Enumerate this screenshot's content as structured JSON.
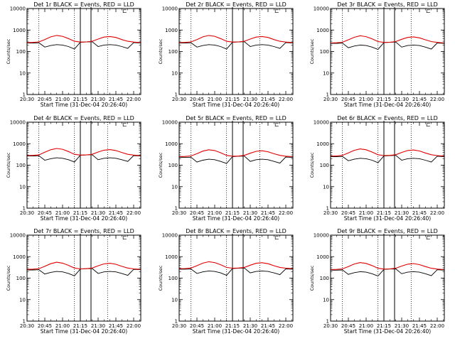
{
  "chart_data": [
    {
      "type": "line",
      "title": "Det 1r BLACK = Events, RED = LLD",
      "corner_mark": "⊏",
      "xlabel": "Start Time (31-Dec-04 20:26:40)",
      "ylabel": "Counts/sec",
      "x_ticks": [
        "20:30",
        "20:45",
        "21:00",
        "21:15",
        "21:30",
        "21:45",
        "22:00"
      ],
      "y_ticks": [
        "1",
        "10",
        "100",
        "1000",
        "10000"
      ],
      "yscale": "log",
      "ylim": [
        1,
        10000
      ],
      "xlim_minutes_from_2030": [
        0,
        96
      ],
      "x_minutes_from_2030": [
        0,
        5,
        10,
        15,
        20,
        25,
        30,
        35,
        40,
        45,
        50,
        55,
        60,
        65,
        70,
        75,
        80,
        85,
        90,
        96
      ],
      "series": [
        {
          "name": "Events",
          "color": "#000000",
          "values": [
            250,
            250,
            255,
            160,
            190,
            210,
            200,
            170,
            130,
            270,
            280,
            285,
            170,
            200,
            210,
            200,
            170,
            140,
            260,
            250
          ]
        },
        {
          "name": "LLD",
          "color": "#e00000",
          "values": [
            260,
            265,
            280,
            360,
            480,
            560,
            510,
            400,
            300,
            275,
            280,
            300,
            380,
            470,
            500,
            450,
            360,
            300,
            275,
            260
          ]
        }
      ],
      "vertical_lines": {
        "solid_minutes": [
          45,
          54
        ],
        "dotted_minutes": [
          10,
          40,
          68
        ]
      }
    },
    {
      "type": "line",
      "title": "Det 2r BLACK = Events, RED = LLD",
      "corner_mark": "⊏",
      "xlabel": "Start Time (31-Dec-04 20:26:40)",
      "ylabel": "Counts/sec",
      "x_ticks": [
        "20:30",
        "20:45",
        "21:00",
        "21:15",
        "21:30",
        "21:45",
        "22:00"
      ],
      "y_ticks": [
        "1",
        "10",
        "100",
        "1000",
        "10000"
      ],
      "yscale": "log",
      "ylim": [
        1,
        10000
      ],
      "xlim_minutes_from_2030": [
        0,
        96
      ],
      "x_minutes_from_2030": [
        0,
        5,
        10,
        15,
        20,
        25,
        30,
        35,
        40,
        45,
        50,
        55,
        60,
        65,
        70,
        75,
        80,
        85,
        90,
        96
      ],
      "series": [
        {
          "name": "Events",
          "color": "#000000",
          "values": [
            250,
            250,
            255,
            160,
            190,
            210,
            200,
            170,
            130,
            270,
            280,
            285,
            170,
            200,
            210,
            200,
            170,
            140,
            260,
            250
          ]
        },
        {
          "name": "LLD",
          "color": "#e00000",
          "values": [
            260,
            265,
            280,
            360,
            480,
            560,
            510,
            400,
            300,
            275,
            280,
            300,
            380,
            470,
            500,
            450,
            360,
            300,
            275,
            260
          ]
        }
      ],
      "vertical_lines": {
        "solid_minutes": [
          45,
          54
        ],
        "dotted_minutes": [
          10,
          40,
          68
        ]
      }
    },
    {
      "type": "line",
      "title": "Det 3r BLACK = Events, RED = LLD",
      "corner_mark": "⊏",
      "xlabel": "Start Time (31-Dec-04 20:26:40)",
      "ylabel": "Counts/sec",
      "x_ticks": [
        "20:30",
        "20:45",
        "21:00",
        "21:15",
        "21:30",
        "21:45",
        "22:00"
      ],
      "y_ticks": [
        "1",
        "10",
        "100",
        "1000",
        "10000"
      ],
      "yscale": "log",
      "ylim": [
        1,
        10000
      ],
      "xlim_minutes_from_2030": [
        0,
        96
      ],
      "x_minutes_from_2030": [
        0,
        5,
        10,
        15,
        20,
        25,
        30,
        35,
        40,
        45,
        50,
        55,
        60,
        65,
        70,
        75,
        80,
        85,
        90,
        96
      ],
      "series": [
        {
          "name": "Events",
          "color": "#000000",
          "values": [
            240,
            240,
            245,
            150,
            180,
            200,
            190,
            160,
            125,
            260,
            270,
            275,
            160,
            190,
            200,
            190,
            160,
            130,
            250,
            240
          ]
        },
        {
          "name": "LLD",
          "color": "#e00000",
          "values": [
            250,
            255,
            270,
            350,
            460,
            540,
            490,
            390,
            290,
            265,
            270,
            290,
            370,
            450,
            480,
            430,
            350,
            290,
            265,
            250
          ]
        }
      ],
      "vertical_lines": {
        "solid_minutes": [
          45,
          54
        ],
        "dotted_minutes": [
          10,
          40,
          68
        ]
      }
    },
    {
      "type": "line",
      "title": "Det 4r BLACK = Events, RED = LLD",
      "corner_mark": "⊏",
      "xlabel": "Start Time (31-Dec-04 20:26:40)",
      "ylabel": "Counts/sec",
      "x_ticks": [
        "20:30",
        "20:45",
        "21:00",
        "21:15",
        "21:30",
        "21:45",
        "22:00"
      ],
      "y_ticks": [
        "1",
        "10",
        "100",
        "1000",
        "10000"
      ],
      "yscale": "log",
      "ylim": [
        1,
        10000
      ],
      "xlim_minutes_from_2030": [
        0,
        96
      ],
      "x_minutes_from_2030": [
        0,
        5,
        10,
        15,
        20,
        25,
        30,
        35,
        40,
        45,
        50,
        55,
        60,
        65,
        70,
        75,
        80,
        85,
        90,
        96
      ],
      "series": [
        {
          "name": "Events",
          "color": "#000000",
          "values": [
            270,
            270,
            275,
            170,
            200,
            220,
            210,
            180,
            140,
            290,
            300,
            305,
            180,
            210,
            220,
            210,
            180,
            150,
            280,
            270
          ]
        },
        {
          "name": "LLD",
          "color": "#e00000",
          "values": [
            280,
            285,
            300,
            400,
            520,
            600,
            550,
            430,
            320,
            295,
            300,
            320,
            410,
            500,
            530,
            480,
            390,
            320,
            295,
            280
          ]
        }
      ],
      "vertical_lines": {
        "solid_minutes": [
          45,
          54
        ],
        "dotted_minutes": [
          10,
          40,
          68
        ]
      }
    },
    {
      "type": "line",
      "title": "Det 5r BLACK = Events, RED = LLD",
      "corner_mark": "⊏",
      "xlabel": "Start Time (31-Dec-04 20:26:40)",
      "ylabel": "Counts/sec",
      "x_ticks": [
        "20:30",
        "20:45",
        "21:00",
        "21:15",
        "21:30",
        "21:45",
        "22:00"
      ],
      "y_ticks": [
        "1",
        "10",
        "100",
        "1000",
        "10000"
      ],
      "yscale": "log",
      "ylim": [
        1,
        10000
      ],
      "xlim_minutes_from_2030": [
        0,
        96
      ],
      "x_minutes_from_2030": [
        0,
        5,
        10,
        15,
        20,
        25,
        30,
        35,
        40,
        45,
        50,
        55,
        60,
        65,
        70,
        75,
        80,
        85,
        90,
        96
      ],
      "series": [
        {
          "name": "Events",
          "color": "#000000",
          "values": [
            230,
            230,
            235,
            140,
            170,
            190,
            180,
            150,
            120,
            250,
            260,
            265,
            150,
            180,
            190,
            180,
            150,
            125,
            240,
            230
          ]
        },
        {
          "name": "LLD",
          "color": "#e00000",
          "values": [
            250,
            255,
            270,
            340,
            450,
            520,
            480,
            380,
            285,
            260,
            265,
            285,
            360,
            440,
            470,
            420,
            340,
            285,
            260,
            250
          ]
        }
      ],
      "vertical_lines": {
        "solid_minutes": [
          45,
          54
        ],
        "dotted_minutes": [
          10,
          40,
          68
        ]
      }
    },
    {
      "type": "line",
      "title": "Det 6r BLACK = Events, RED = LLD",
      "corner_mark": "⊏",
      "xlabel": "Start Time (31-Dec-04 20:26:40)",
      "ylabel": "Counts/sec",
      "x_ticks": [
        "20:30",
        "20:45",
        "21:00",
        "21:15",
        "21:30",
        "21:45",
        "22:00"
      ],
      "y_ticks": [
        "1",
        "10",
        "100",
        "1000",
        "10000"
      ],
      "yscale": "log",
      "ylim": [
        1,
        10000
      ],
      "xlim_minutes_from_2030": [
        0,
        96
      ],
      "x_minutes_from_2030": [
        0,
        5,
        10,
        15,
        20,
        25,
        30,
        35,
        40,
        45,
        50,
        55,
        60,
        65,
        70,
        75,
        80,
        85,
        90,
        96
      ],
      "series": [
        {
          "name": "Events",
          "color": "#000000",
          "values": [
            250,
            250,
            255,
            160,
            190,
            210,
            200,
            170,
            130,
            270,
            280,
            285,
            170,
            200,
            210,
            200,
            170,
            140,
            260,
            250
          ]
        },
        {
          "name": "LLD",
          "color": "#e00000",
          "values": [
            265,
            270,
            285,
            370,
            490,
            570,
            520,
            410,
            305,
            280,
            285,
            305,
            390,
            480,
            510,
            460,
            370,
            305,
            280,
            265
          ]
        }
      ],
      "vertical_lines": {
        "solid_minutes": [
          45,
          54
        ],
        "dotted_minutes": [
          10,
          40,
          68
        ]
      }
    },
    {
      "type": "line",
      "title": "Det 7r BLACK = Events, RED = LLD",
      "corner_mark": "⊏",
      "xlabel": "Start Time (31-Dec-04 20:26:40)",
      "ylabel": "Counts/sec",
      "x_ticks": [
        "20:30",
        "20:45",
        "21:00",
        "21:15",
        "21:30",
        "21:45",
        "22:00"
      ],
      "y_ticks": [
        "1",
        "10",
        "100",
        "1000",
        "10000"
      ],
      "yscale": "log",
      "ylim": [
        1,
        10000
      ],
      "xlim_minutes_from_2030": [
        0,
        96
      ],
      "x_minutes_from_2030": [
        0,
        5,
        10,
        15,
        20,
        25,
        30,
        35,
        40,
        45,
        50,
        55,
        60,
        65,
        70,
        75,
        80,
        85,
        90,
        96
      ],
      "series": [
        {
          "name": "Events",
          "color": "#000000",
          "values": [
            240,
            240,
            245,
            155,
            185,
            205,
            195,
            165,
            128,
            265,
            275,
            280,
            165,
            195,
            205,
            195,
            165,
            135,
            255,
            245
          ]
        },
        {
          "name": "LLD",
          "color": "#e00000",
          "values": [
            255,
            260,
            275,
            355,
            470,
            550,
            500,
            395,
            295,
            270,
            275,
            295,
            375,
            460,
            490,
            440,
            355,
            295,
            270,
            255
          ]
        }
      ],
      "vertical_lines": {
        "solid_minutes": [
          45,
          54
        ],
        "dotted_minutes": [
          10,
          40,
          68
        ]
      }
    },
    {
      "type": "line",
      "title": "Det 8r BLACK = Events, RED = LLD",
      "corner_mark": "⊏",
      "xlabel": "Start Time (31-Dec-04 20:26:40)",
      "ylabel": "Counts/sec",
      "x_ticks": [
        "20:30",
        "20:45",
        "21:00",
        "21:15",
        "21:30",
        "21:45",
        "22:00"
      ],
      "y_ticks": [
        "1",
        "10",
        "100",
        "1000",
        "10000"
      ],
      "yscale": "log",
      "ylim": [
        1,
        10000
      ],
      "xlim_minutes_from_2030": [
        0,
        96
      ],
      "x_minutes_from_2030": [
        0,
        5,
        10,
        15,
        20,
        25,
        30,
        35,
        40,
        45,
        50,
        55,
        60,
        65,
        70,
        75,
        80,
        85,
        90,
        96
      ],
      "series": [
        {
          "name": "Events",
          "color": "#000000",
          "values": [
            260,
            260,
            265,
            165,
            195,
            215,
            205,
            175,
            135,
            280,
            290,
            295,
            175,
            205,
            215,
            205,
            175,
            145,
            270,
            260
          ]
        },
        {
          "name": "LLD",
          "color": "#e00000",
          "values": [
            275,
            280,
            295,
            380,
            500,
            580,
            530,
            420,
            315,
            290,
            295,
            315,
            400,
            490,
            520,
            470,
            380,
            315,
            290,
            275
          ]
        }
      ],
      "vertical_lines": {
        "solid_minutes": [
          45,
          54
        ],
        "dotted_minutes": [
          10,
          40,
          68
        ]
      }
    },
    {
      "type": "line",
      "title": "Det 9r BLACK = Events, RED = LLD",
      "corner_mark": "⊏",
      "xlabel": "Start Time (31-Dec-04 20:26:40)",
      "ylabel": "Counts/sec",
      "x_ticks": [
        "20:30",
        "20:45",
        "21:00",
        "21:15",
        "21:30",
        "21:45",
        "22:00"
      ],
      "y_ticks": [
        "1",
        "10",
        "100",
        "1000",
        "10000"
      ],
      "yscale": "log",
      "ylim": [
        1,
        10000
      ],
      "xlim_minutes_from_2030": [
        0,
        96
      ],
      "x_minutes_from_2030": [
        0,
        5,
        10,
        15,
        20,
        25,
        30,
        35,
        40,
        45,
        50,
        55,
        60,
        65,
        70,
        75,
        80,
        85,
        90,
        96
      ],
      "series": [
        {
          "name": "Events",
          "color": "#000000",
          "values": [
            235,
            235,
            240,
            150,
            180,
            200,
            190,
            160,
            125,
            255,
            265,
            270,
            160,
            190,
            200,
            190,
            160,
            130,
            245,
            235
          ]
        },
        {
          "name": "LLD",
          "color": "#e00000",
          "values": [
            250,
            255,
            270,
            345,
            455,
            530,
            485,
            385,
            288,
            262,
            268,
            288,
            365,
            445,
            475,
            425,
            345,
            288,
            262,
            250
          ]
        }
      ],
      "vertical_lines": {
        "solid_minutes": [
          45,
          54
        ],
        "dotted_minutes": [
          10,
          40,
          68
        ]
      }
    }
  ]
}
